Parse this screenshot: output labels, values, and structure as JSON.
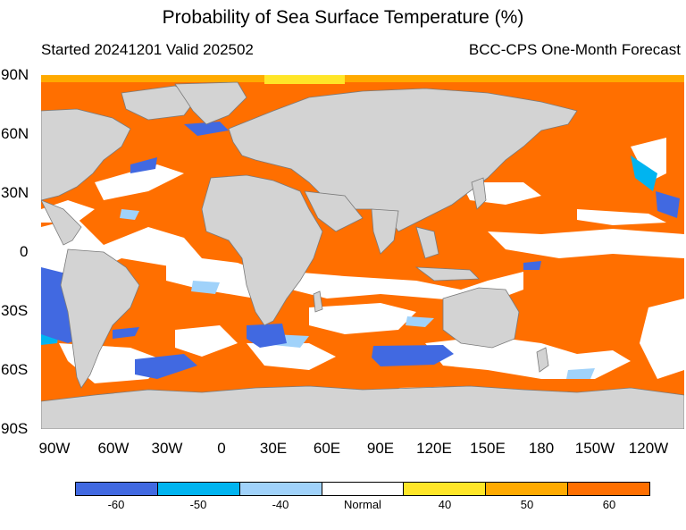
{
  "title": "Probability of Sea Surface Temperature (%)",
  "subtitle_left": "Started 20241201  Valid 202502",
  "subtitle_right": "BCC-CPS One-Month Forecast",
  "lat_labels": [
    "90N",
    "60N",
    "30N",
    "0",
    "30S",
    "60S",
    "90S"
  ],
  "lon_labels": [
    "90W",
    "60W",
    "30W",
    "0",
    "30E",
    "60E",
    "90E",
    "120E",
    "150E",
    "180",
    "150W",
    "120W"
  ],
  "legend": {
    "colors": [
      "#4169e1",
      "#00b4f0",
      "#a0d2fa",
      "#ffffff",
      "#ffe628",
      "#ffaa00",
      "#ff6f00"
    ],
    "labels": [
      "-60",
      "-50",
      "-40",
      "Normal",
      "40",
      "50",
      "60"
    ]
  },
  "colors": {
    "land": "#d3d3d3",
    "above_60": "#ff6f00",
    "normal": "#ffffff",
    "below_60": "#4169e1"
  }
}
